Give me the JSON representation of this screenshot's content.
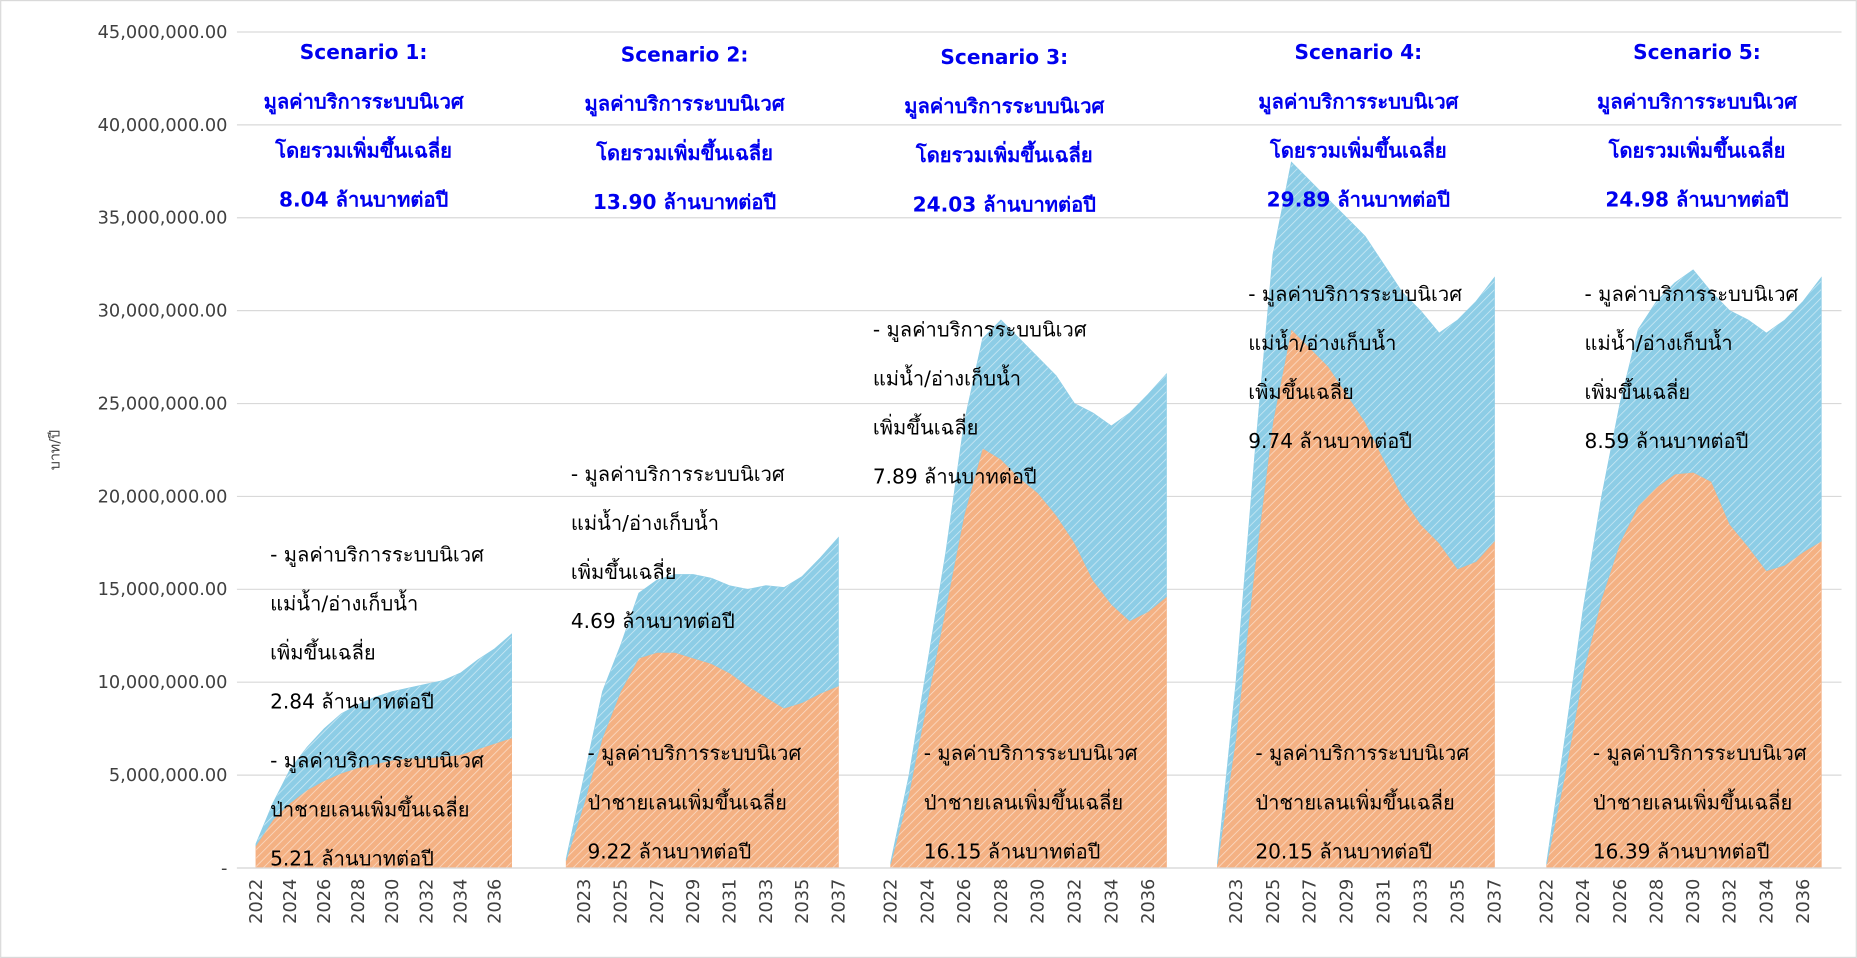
{
  "chart_data": {
    "type": "stacked-area",
    "ylabel": "บาท/ปี",
    "ylim": [
      0,
      45000000
    ],
    "yticks": [
      {
        "value": 0,
        "label": "-"
      },
      {
        "value": 5000000,
        "label": "5,000,000.00"
      },
      {
        "value": 10000000,
        "label": "10,000,000.00"
      },
      {
        "value": 15000000,
        "label": "15,000,000.00"
      },
      {
        "value": 20000000,
        "label": "20,000,000.00"
      },
      {
        "value": 25000000,
        "label": "25,000,000.00"
      },
      {
        "value": 30000000,
        "label": "30,000,000.00"
      },
      {
        "value": 35000000,
        "label": "35,000,000.00"
      },
      {
        "value": 40000000,
        "label": "40,000,000.00"
      },
      {
        "value": 45000000,
        "label": "45,000,000.00"
      }
    ],
    "grid": true,
    "groups": [
      {
        "title": [
          "Scenario 1:",
          "มูลค่าบริการระบบนิเวศ",
          "โดยรวมเพิ่มขึ้นเฉลี่ย",
          "8.04 ล้านบาทต่อปี"
        ],
        "categories": [
          2022,
          null,
          2024,
          null,
          2026,
          null,
          2028,
          null,
          2030,
          null,
          2032,
          null,
          2034,
          null,
          2036,
          null
        ],
        "series": [
          {
            "color": "#f4b183",
            "values": [
              1200000,
              2600000,
              3500000,
              4200000,
              4700000,
              5100000,
              5400000,
              5600000,
              5800000,
              5900000,
              5900000,
              6000000,
              6100000,
              6400000,
              6700000,
              7000000
            ],
            "annotation": [
              "- มูลค่าบริการระบบนิเวศ",
              "ป่าชายเลนเพิ่มขึ้นเฉลี่ย",
              "5.21 ล้านบาทต่อปี"
            ]
          },
          {
            "color": "#8dcde6",
            "values": [
              100000,
              900000,
              1800000,
              2300000,
              2800000,
              3200000,
              3400000,
              3600000,
              3700000,
              3800000,
              4000000,
              4100000,
              4400000,
              4800000,
              5100000,
              5600000
            ],
            "annotation": [
              "- มูลค่าบริการระบบนิเวศ",
              "แม่น้ำ/อ่างเก็บน้ำ",
              "เพิ่มขึ้นเฉลี่ย",
              "2.84 ล้านบาทต่อปี"
            ]
          }
        ]
      },
      {
        "title": [
          "Scenario 2:",
          "มูลค่าบริการระบบนิเวศ",
          "โดยรวมเพิ่มขึ้นเฉลี่ย",
          "13.90 ล้านบาทต่อปี"
        ],
        "categories": [
          null,
          2023,
          null,
          2025,
          null,
          2027,
          null,
          2029,
          null,
          2031,
          null,
          2033,
          null,
          2035,
          null,
          2037
        ],
        "series": [
          {
            "color": "#f4b183",
            "values": [
              400000,
              3500000,
              7000000,
              9500000,
              11300000,
              11600000,
              11600000,
              11300000,
              11000000,
              10500000,
              9800000,
              9200000,
              8600000,
              8900000,
              9400000,
              9800000
            ],
            "annotation": [
              "- มูลค่าบริการระบบนิเวศ",
              "ป่าชายเลนเพิ่มขึ้นเฉลี่ย",
              "9.22 ล้านบาทต่อปี"
            ]
          },
          {
            "color": "#8dcde6",
            "values": [
              100000,
              1500000,
              2500000,
              2500000,
              3500000,
              3900000,
              4200000,
              4500000,
              4600000,
              4700000,
              5200000,
              6000000,
              6500000,
              6800000,
              7300000,
              8000000
            ],
            "annotation": [
              "- มูลค่าบริการระบบนิเวศ",
              "แม่น้ำ/อ่างเก็บน้ำ",
              "เพิ่มขึ้นเฉลี่ย",
              "4.69 ล้านบาทต่อปี"
            ]
          }
        ]
      },
      {
        "title": [
          "Scenario 3:",
          "มูลค่าบริการระบบนิเวศ",
          "โดยรวมเพิ่มขึ้นเฉลี่ย",
          "24.03 ล้านบาทต่อปี"
        ],
        "categories": [
          2022,
          null,
          2024,
          null,
          2026,
          null,
          2028,
          null,
          2030,
          null,
          2032,
          null,
          2034,
          null,
          2036,
          null
        ],
        "series": [
          {
            "color": "#f4b183",
            "values": [
              200000,
              4000000,
              9000000,
              14000000,
              19000000,
              22600000,
              22000000,
              21000000,
              20200000,
              19000000,
              17500000,
              15500000,
              14200000,
              13300000,
              13800000,
              14600000
            ],
            "annotation": [
              "- มูลค่าบริการระบบนิเวศ",
              "ป่าชายเลนเพิ่มขึ้นเฉลี่ย",
              "16.15 ล้านบาทต่อปี"
            ]
          },
          {
            "color": "#8dcde6",
            "values": [
              100000,
              1000000,
              2000000,
              3000000,
              5000000,
              5900000,
              7500000,
              7500000,
              7300000,
              7500000,
              7500000,
              9000000,
              9600000,
              11200000,
              11700000,
              12000000
            ],
            "annotation": [
              "- มูลค่าบริการระบบนิเวศ",
              "แม่น้ำ/อ่างเก็บน้ำ",
              "เพิ่มขึ้นเฉลี่ย",
              "7.89 ล้านบาทต่อปี"
            ]
          }
        ]
      },
      {
        "title": [
          "Scenario 4:",
          "มูลค่าบริการระบบนิเวศ",
          "โดยรวมเพิ่มขึ้นเฉลี่ย",
          "29.89 ล้านบาทต่อปี"
        ],
        "categories": [
          null,
          2023,
          null,
          2025,
          null,
          2027,
          null,
          2029,
          null,
          2031,
          null,
          2033,
          null,
          2035,
          null,
          2037
        ],
        "series": [
          {
            "color": "#f4b183",
            "values": [
              200000,
              7000000,
              16000000,
              24000000,
              29000000,
              28000000,
              27000000,
              25500000,
              24000000,
              22000000,
              20000000,
              18500000,
              17500000,
              16100000,
              16500000,
              17600000
            ],
            "annotation": [
              "- มูลค่าบริการระบบนิเวศ",
              "ป่าชายเลนเพิ่มขึ้นเฉลี่ย",
              "20.15 ล้านบาทต่อปี"
            ]
          },
          {
            "color": "#8dcde6",
            "values": [
              100000,
              3000000,
              6000000,
              9000000,
              9000000,
              9000000,
              9000000,
              9500000,
              10000000,
              10500000,
              11000000,
              11500000,
              11300000,
              13400000,
              14000000,
              14200000
            ],
            "annotation": [
              "- มูลค่าบริการระบบนิเวศ",
              "แม่น้ำ/อ่างเก็บน้ำ",
              "เพิ่มขึ้นเฉลี่ย",
              "9.74 ล้านบาทต่อปี"
            ]
          }
        ]
      },
      {
        "title": [
          "Scenario 5:",
          "มูลค่าบริการระบบนิเวศ",
          "โดยรวมเพิ่มขึ้นเฉลี่ย",
          "24.98 ล้านบาทต่อปี"
        ],
        "categories": [
          2022,
          null,
          2024,
          null,
          2026,
          null,
          2028,
          null,
          2030,
          null,
          2032,
          null,
          2034,
          null,
          2036,
          null
        ],
        "series": [
          {
            "color": "#f4b183",
            "values": [
              200000,
              5000000,
              10500000,
              14500000,
              17500000,
              19500000,
              20500000,
              21200000,
              21300000,
              20800000,
              18500000,
              17300000,
              16000000,
              16300000,
              17000000,
              17600000
            ],
            "annotation": [
              "- มูลค่าบริการระบบนิเวศ",
              "ป่าชายเลนเพิ่มขึ้นเฉลี่ย",
              "16.39 ล้านบาทต่อปี"
            ]
          },
          {
            "color": "#8dcde6",
            "values": [
              100000,
              2000000,
              3500000,
              5500000,
              7500000,
              9500000,
              10000000,
              10300000,
              10900000,
              10200000,
              11500000,
              12200000,
              12800000,
              13200000,
              13500000,
              14200000
            ],
            "annotation": [
              "- มูลค่าบริการระบบนิเวศ",
              "แม่น้ำ/อ่างเก็บน้ำ",
              "เพิ่มขึ้นเฉลี่ย",
              "8.59 ล้านบาทต่อปี"
            ]
          }
        ]
      }
    ]
  }
}
